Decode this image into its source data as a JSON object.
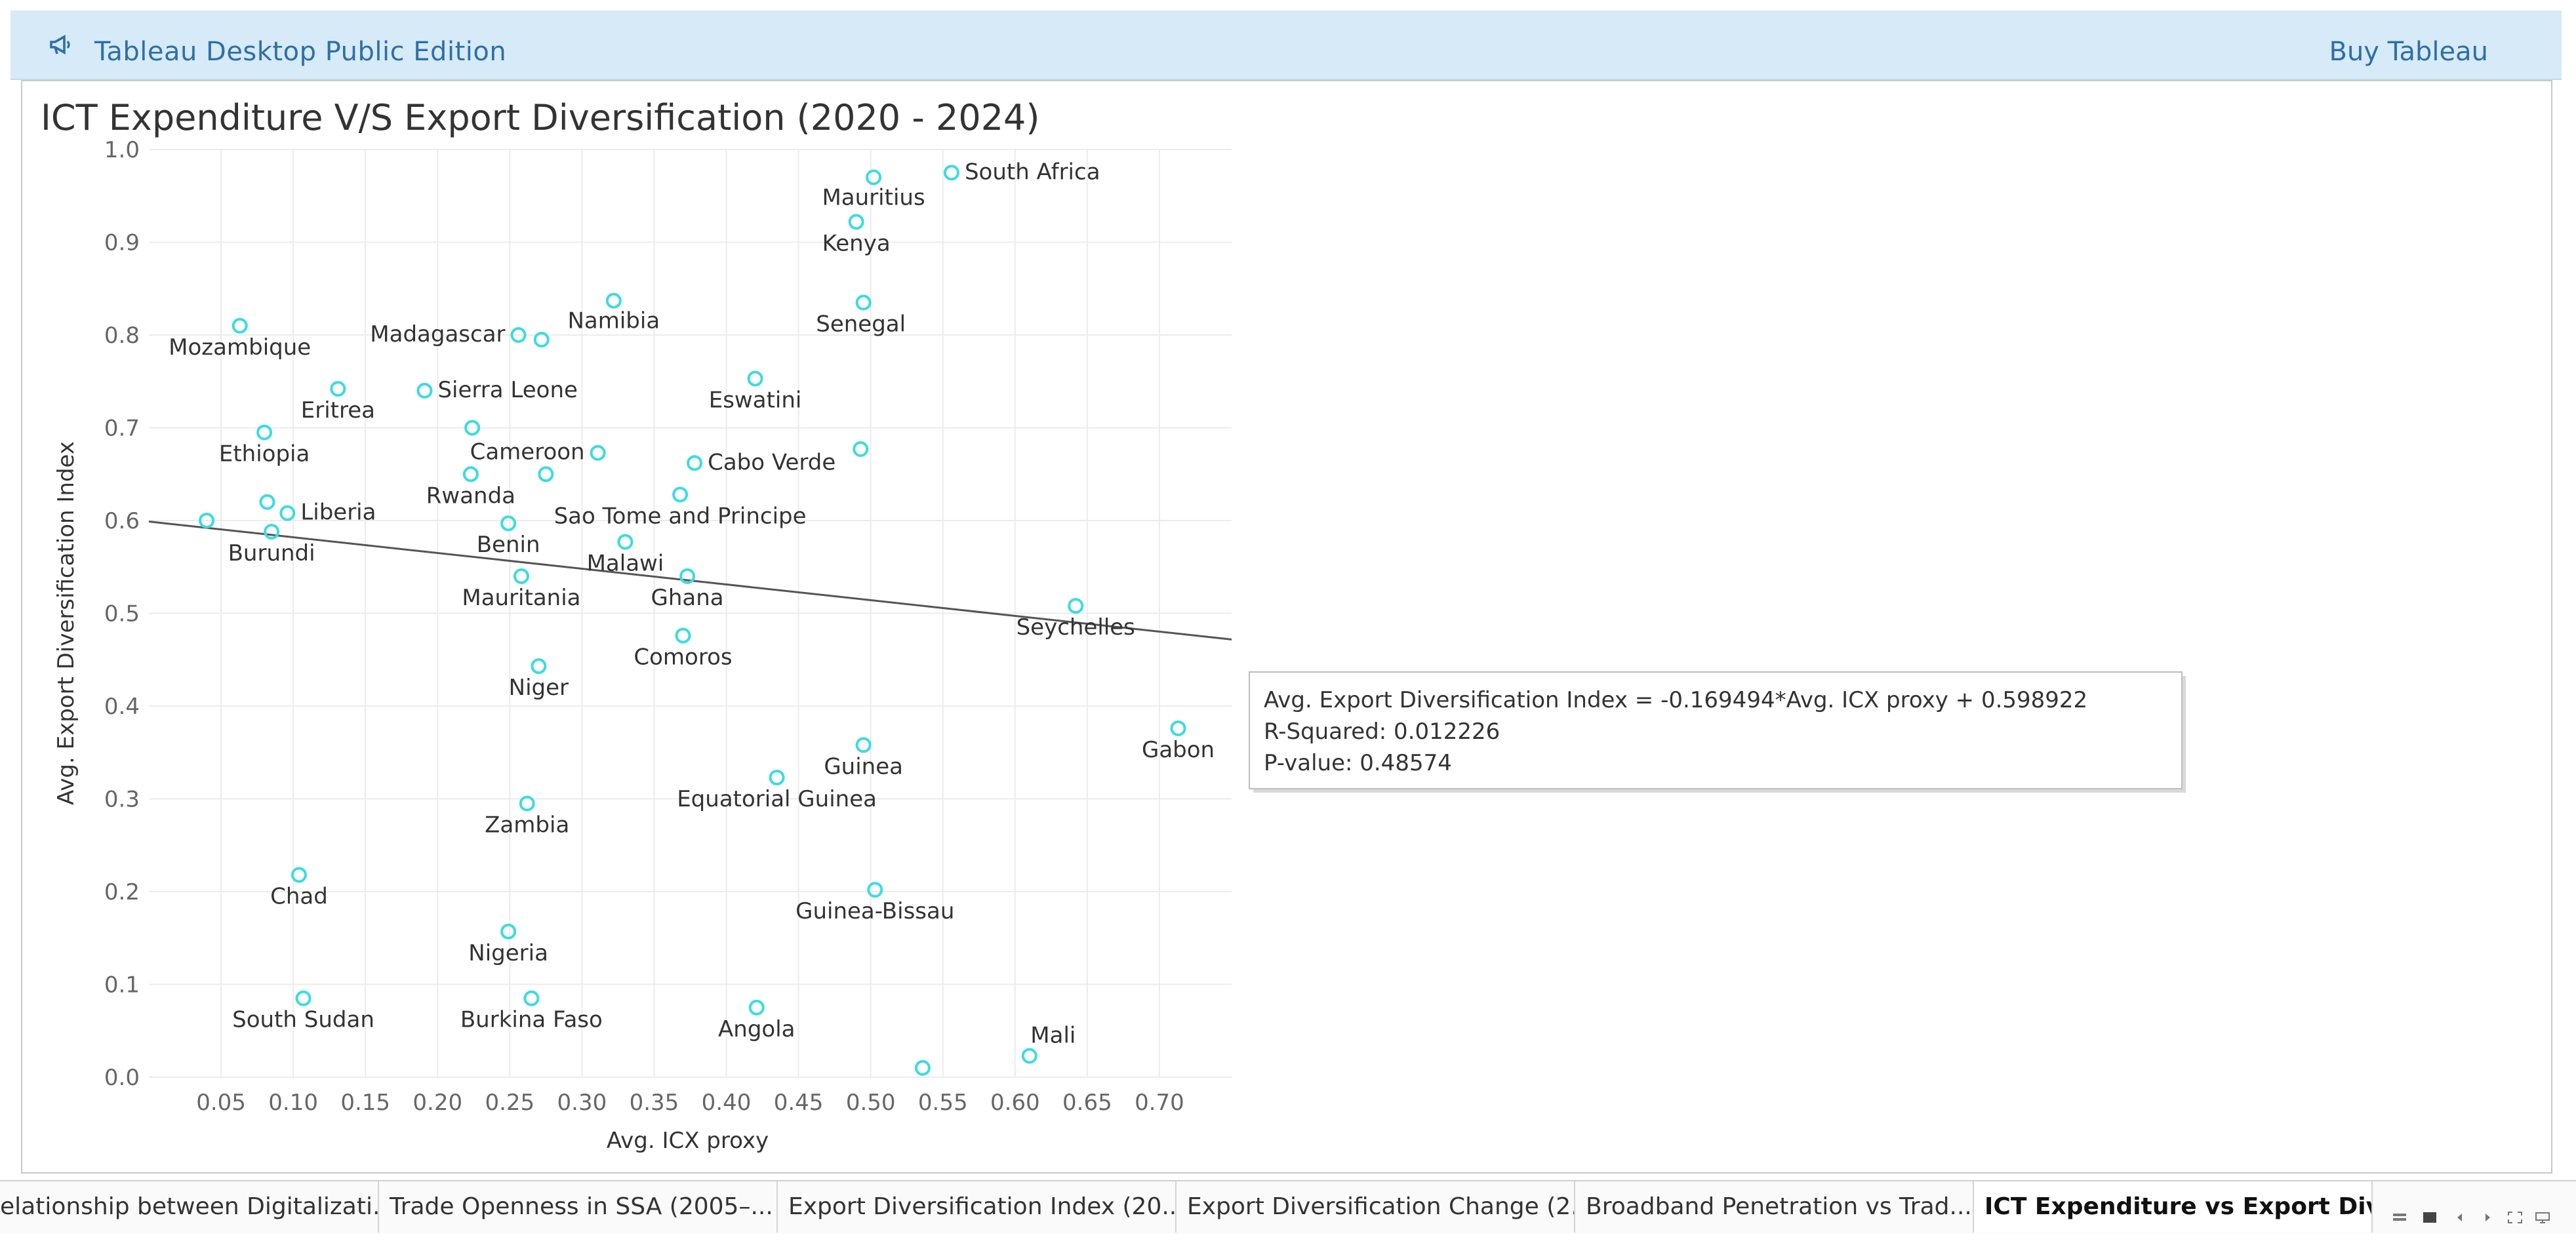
{
  "banner": {
    "title": "Tableau Desktop Public Edition",
    "buy_label": "Buy Tableau",
    "icon": "megaphone-icon"
  },
  "chart_data": {
    "type": "scatter",
    "title": "ICT Expenditure V/S Export Diversification (2020 - 2024)",
    "xlabel": "Avg. ICX proxy",
    "ylabel": "Avg. Export Diversification Index",
    "xlim": [
      0,
      0.75
    ],
    "ylim": [
      0,
      1.0
    ],
    "xticks": [
      "0.05",
      "0.10",
      "0.15",
      "0.20",
      "0.25",
      "0.30",
      "0.35",
      "0.40",
      "0.45",
      "0.50",
      "0.55",
      "0.60",
      "0.65",
      "0.70"
    ],
    "yticks": [
      "0.0",
      "0.1",
      "0.2",
      "0.3",
      "0.4",
      "0.5",
      "0.6",
      "0.7",
      "0.8",
      "0.9",
      "1.0"
    ],
    "grid": true,
    "marker_color": "#3ddbe0",
    "points": [
      {
        "x": 0.556,
        "y": 0.975,
        "label": "South Africa"
      },
      {
        "x": 0.502,
        "y": 0.97,
        "label": "Mauritius"
      },
      {
        "x": 0.49,
        "y": 0.922,
        "label": "Kenya"
      },
      {
        "x": 0.495,
        "y": 0.835,
        "label": "Senegal"
      },
      {
        "x": 0.322,
        "y": 0.837,
        "label": "Namibia"
      },
      {
        "x": 0.256,
        "y": 0.8,
        "label": "Madagascar"
      },
      {
        "x": 0.272,
        "y": 0.795,
        "label": ""
      },
      {
        "x": 0.063,
        "y": 0.81,
        "label": "Mozambique"
      },
      {
        "x": 0.131,
        "y": 0.742,
        "label": "Eritrea"
      },
      {
        "x": 0.191,
        "y": 0.74,
        "label": "Sierra Leone"
      },
      {
        "x": 0.42,
        "y": 0.753,
        "label": "Eswatini"
      },
      {
        "x": 0.08,
        "y": 0.695,
        "label": "Ethiopia"
      },
      {
        "x": 0.224,
        "y": 0.7,
        "label": ""
      },
      {
        "x": 0.311,
        "y": 0.673,
        "label": "Cameroon"
      },
      {
        "x": 0.378,
        "y": 0.662,
        "label": "Cabo Verde"
      },
      {
        "x": 0.493,
        "y": 0.677,
        "label": ""
      },
      {
        "x": 0.223,
        "y": 0.65,
        "label": "Rwanda"
      },
      {
        "x": 0.275,
        "y": 0.65,
        "label": ""
      },
      {
        "x": 0.368,
        "y": 0.628,
        "label": "Sao Tome and Principe"
      },
      {
        "x": 0.082,
        "y": 0.62,
        "label": ""
      },
      {
        "x": 0.096,
        "y": 0.608,
        "label": "Liberia"
      },
      {
        "x": 0.04,
        "y": 0.6,
        "label": ""
      },
      {
        "x": 0.085,
        "y": 0.588,
        "label": "Burundi"
      },
      {
        "x": 0.249,
        "y": 0.597,
        "label": "Benin"
      },
      {
        "x": 0.33,
        "y": 0.577,
        "label": "Malawi"
      },
      {
        "x": 0.258,
        "y": 0.54,
        "label": "Mauritania"
      },
      {
        "x": 0.373,
        "y": 0.54,
        "label": "Ghana"
      },
      {
        "x": 0.642,
        "y": 0.508,
        "label": "Seychelles"
      },
      {
        "x": 0.37,
        "y": 0.476,
        "label": "Comoros"
      },
      {
        "x": 0.27,
        "y": 0.443,
        "label": "Niger"
      },
      {
        "x": 0.713,
        "y": 0.376,
        "label": "Gabon"
      },
      {
        "x": 0.495,
        "y": 0.358,
        "label": "Guinea"
      },
      {
        "x": 0.435,
        "y": 0.323,
        "label": "Equatorial Guinea"
      },
      {
        "x": 0.262,
        "y": 0.295,
        "label": "Zambia"
      },
      {
        "x": 0.104,
        "y": 0.218,
        "label": "Chad"
      },
      {
        "x": 0.503,
        "y": 0.202,
        "label": "Guinea-Bissau"
      },
      {
        "x": 0.249,
        "y": 0.157,
        "label": "Nigeria"
      },
      {
        "x": 0.107,
        "y": 0.085,
        "label": "South Sudan"
      },
      {
        "x": 0.265,
        "y": 0.085,
        "label": "Burkina Faso"
      },
      {
        "x": 0.421,
        "y": 0.075,
        "label": "Angola"
      },
      {
        "x": 0.61,
        "y": 0.023,
        "label": "Mali"
      },
      {
        "x": 0.536,
        "y": 0.01,
        "label": ""
      }
    ],
    "trend_line": {
      "slope": -0.169494,
      "intercept": 0.598922
    },
    "tooltip": {
      "equation": "Avg. Export Diversification Index = -0.169494*Avg. ICX proxy + 0.598922",
      "r_squared": "R-Squared: 0.012226",
      "p_value": "P-value: 0.48574"
    }
  },
  "tabs": [
    {
      "label": "elationship between Digitalizati..."
    },
    {
      "label": "Trade Openness in SSA (2005–..."
    },
    {
      "label": "Export Diversification Index (20..."
    },
    {
      "label": "Export Diversification Change (2..."
    },
    {
      "label": "Broadband Penetration vs Trad..."
    },
    {
      "label": "ICT Expenditure vs Export Dive...",
      "active": true
    }
  ]
}
